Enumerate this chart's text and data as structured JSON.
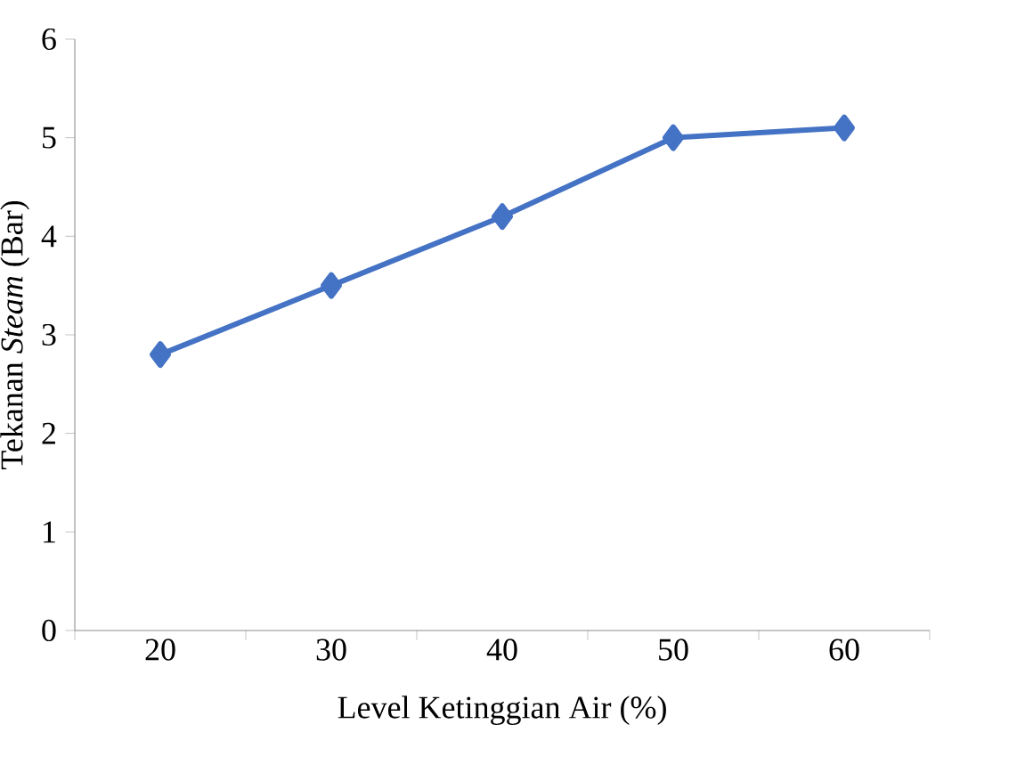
{
  "chart_data": {
    "type": "line",
    "xlabel": "Level Ketinggian Air (%)",
    "ylabel": "Tekanan *Steam* (Bar)",
    "categories": [
      "20",
      "30",
      "40",
      "50",
      "60"
    ],
    "series": [
      {
        "color": "#4472c4",
        "values": [
          2.8,
          3.5,
          4.2,
          5.0,
          5.1
        ]
      }
    ],
    "ylim": [
      0,
      6
    ],
    "yticks": [
      0,
      1,
      2,
      3,
      4,
      5,
      6
    ],
    "marker": "diamond",
    "line_style": "solid"
  }
}
